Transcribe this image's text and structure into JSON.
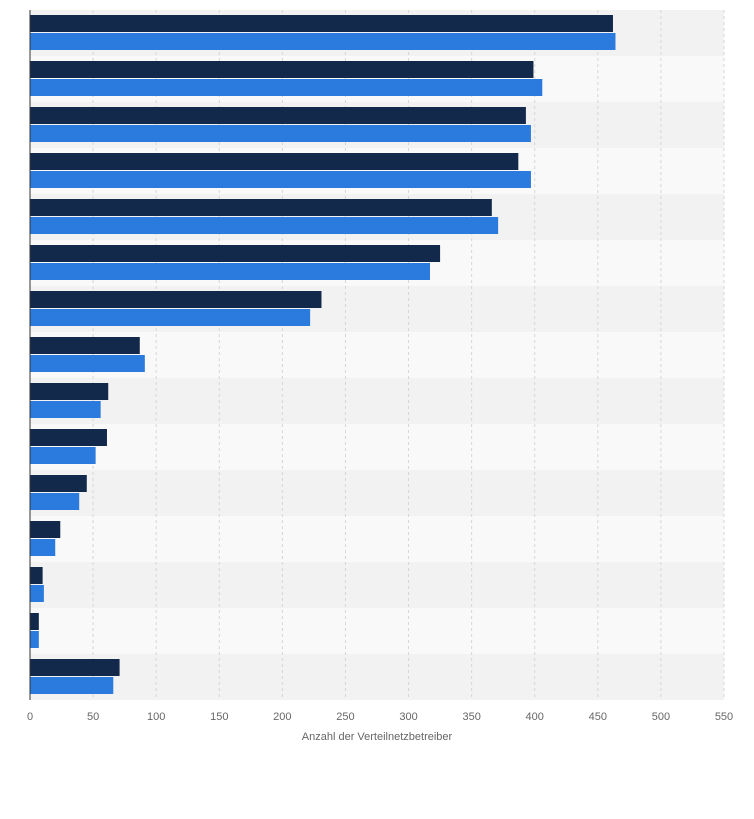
{
  "chart_data": {
    "type": "bar",
    "orientation": "horizontal",
    "title": "",
    "xlabel": "Anzahl der Verteilnetzbetreiber",
    "ylabel": "",
    "xlim": [
      0,
      550
    ],
    "xticks": [
      0,
      50,
      100,
      150,
      200,
      250,
      300,
      350,
      400,
      450,
      500,
      550
    ],
    "grid": "vertical-dashed",
    "categories": [
      "",
      "",
      "",
      "",
      "",
      "",
      "",
      "",
      "",
      "",
      "",
      "",
      "",
      "",
      ""
    ],
    "series": [
      {
        "color": "#13294b",
        "values": [
          462,
          399,
          393,
          387,
          366,
          325,
          231,
          87,
          62,
          61,
          45,
          24,
          10,
          7,
          71
        ]
      },
      {
        "color": "#2b7bde",
        "values": [
          464,
          406,
          397,
          397,
          371,
          317,
          222,
          91,
          56,
          52,
          39,
          20,
          11,
          7,
          66
        ]
      }
    ],
    "colors": {
      "band_even": "#f2f2f2",
      "band_odd": "#f9f9f9",
      "grid": "#d6d6d6",
      "axis": "#333333",
      "text": "#666666"
    }
  }
}
